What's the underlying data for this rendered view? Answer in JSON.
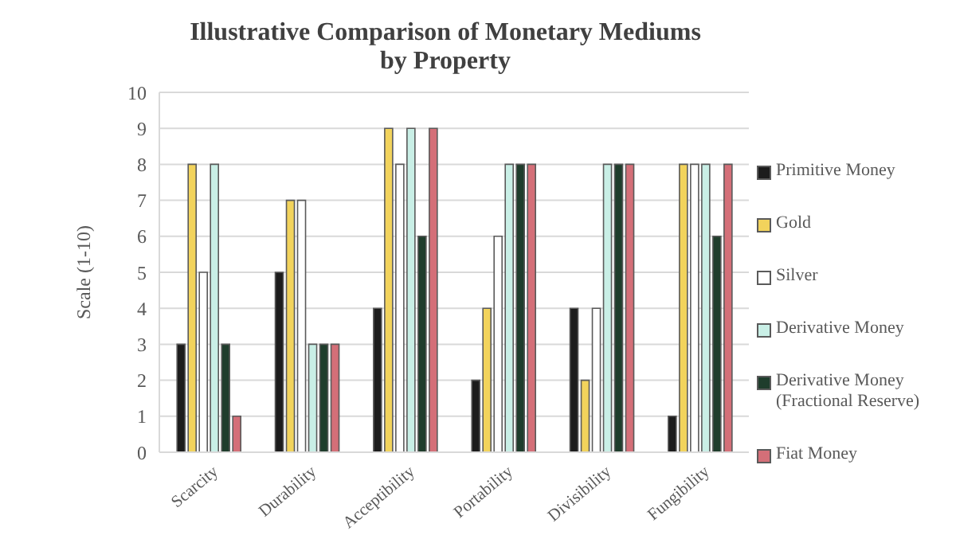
{
  "chart_data": {
    "type": "bar",
    "title": "Illustrative Comparison of Monetary Mediums by Property",
    "ylabel": "Scale (1-10)",
    "categories": [
      "Scarcity",
      "Durability",
      "Acceptibility",
      "Portability",
      "Divisibility",
      "Fungibility"
    ],
    "series": [
      {
        "name": "Primitive Money",
        "color": "#1c1c1c",
        "values": [
          3,
          5,
          4,
          2,
          4,
          1
        ]
      },
      {
        "name": "Gold",
        "color": "#f2d35c",
        "values": [
          8,
          7,
          9,
          4,
          2,
          8
        ]
      },
      {
        "name": "Silver",
        "color": "#ffffff",
        "values": [
          5,
          7,
          8,
          6,
          4,
          8
        ]
      },
      {
        "name": "Derivative Money",
        "color": "#c9efe6",
        "values": [
          8,
          3,
          9,
          8,
          8,
          8
        ]
      },
      {
        "name": "Derivative Money (Fractional Reserve)",
        "color": "#1f3d2c",
        "values": [
          3,
          3,
          6,
          8,
          8,
          6
        ]
      },
      {
        "name": "Fiat Money",
        "color": "#d46f78",
        "values": [
          1,
          3,
          9,
          8,
          8,
          8
        ]
      }
    ],
    "ylim": [
      0,
      10
    ],
    "yticks": [
      0,
      1,
      2,
      3,
      4,
      5,
      6,
      7,
      8,
      9,
      10
    ],
    "grid": "y",
    "legend": "right"
  }
}
